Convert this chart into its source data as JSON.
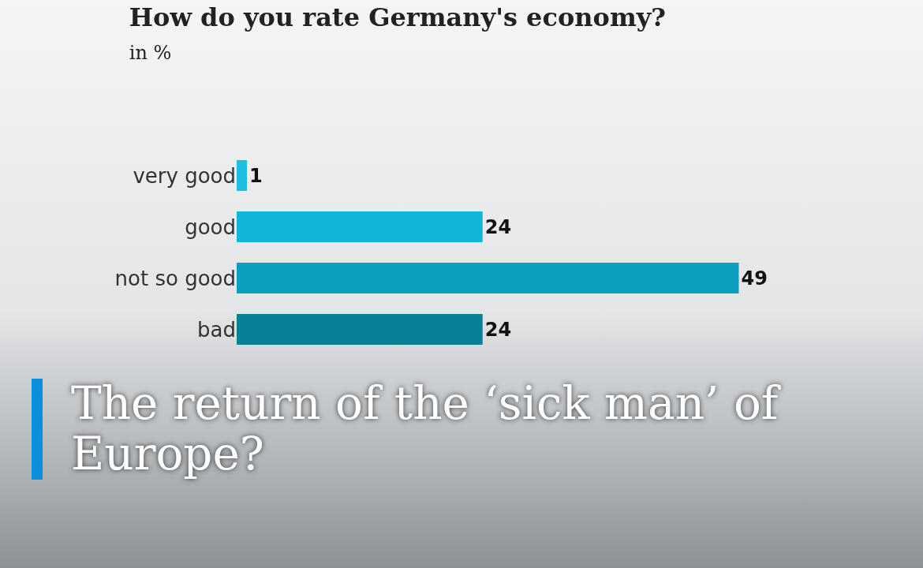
{
  "chart_data": {
    "type": "bar",
    "orientation": "horizontal",
    "title": "How do you rate Germany's economy?",
    "subtitle": "in %",
    "categories": [
      "very good",
      "good",
      "not so good",
      "bad"
    ],
    "values": [
      1,
      24,
      49,
      24
    ],
    "colors": [
      "#1cbfdf",
      "#0fb6d6",
      "#0a9fbf",
      "#0a7f98"
    ],
    "data_labels": true,
    "annotations": [
      "The return of the ‘sick man’ of Europe?"
    ]
  }
}
